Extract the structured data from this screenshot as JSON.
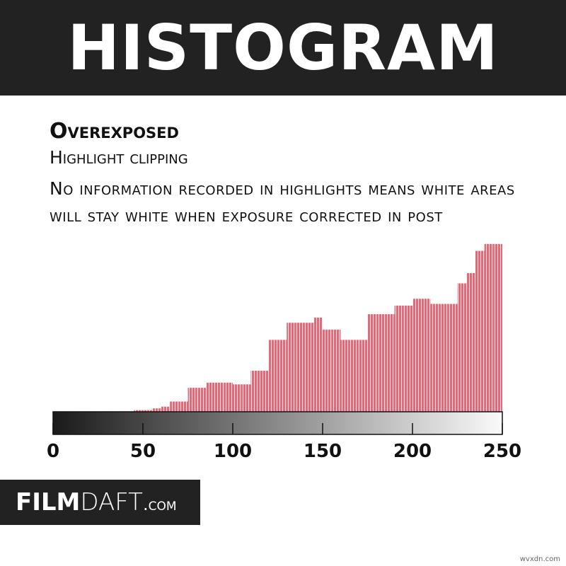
{
  "chart_data": {
    "type": "histogram",
    "title": "HISTOGRAM",
    "heading": "Overexposed",
    "subheading": "Highlight clipping",
    "description": "No information recorded in highlights means white areas will stay white when exposure corrected in post",
    "bins": [
      0,
      5,
      10,
      15,
      20,
      25,
      30,
      35,
      40,
      45,
      50,
      55,
      60,
      65,
      70,
      75,
      80,
      85,
      90,
      95,
      100,
      105,
      110,
      115,
      120,
      125,
      130,
      135,
      140,
      145,
      150,
      155,
      160,
      165,
      170,
      175,
      180,
      185,
      190,
      195,
      200,
      205,
      210,
      215,
      220,
      225,
      230,
      235,
      240,
      245,
      250
    ],
    "values": [
      0,
      0,
      0,
      0,
      0,
      0,
      0,
      0,
      0,
      1,
      1,
      2,
      3,
      6,
      6,
      14,
      14,
      17,
      17,
      17,
      16,
      16,
      24,
      24,
      42,
      42,
      52,
      52,
      52,
      55,
      48,
      48,
      42,
      42,
      42,
      57,
      57,
      57,
      62,
      62,
      66,
      66,
      63,
      63,
      63,
      75,
      81,
      94,
      98,
      98
    ],
    "color": "#e06a7a",
    "xlim": [
      0,
      250
    ],
    "xticks": [
      0,
      50,
      100,
      150,
      200,
      250
    ],
    "ylim": [
      0,
      100
    ],
    "logo": [
      "FILM",
      "DAFT",
      ".com"
    ],
    "watermark": "wvxdn.com"
  }
}
